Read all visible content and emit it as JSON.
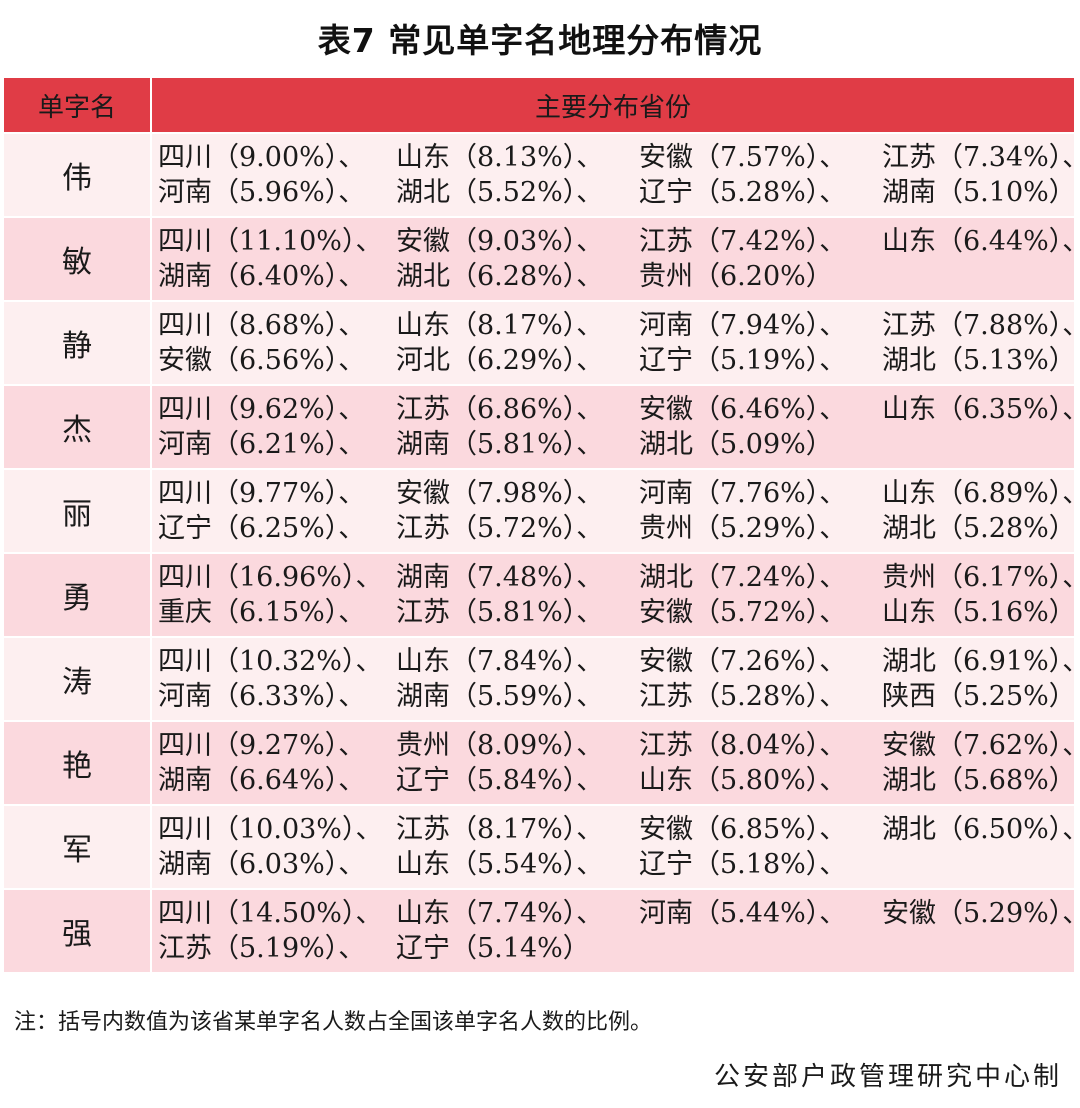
{
  "title": "表7  常见单字名地理分布情况",
  "table": {
    "headers": {
      "name": "单字名",
      "distribution": "主要分布省份"
    },
    "rows": [
      {
        "name": "伟",
        "lines": [
          [
            "四川（9.00%）、",
            "山东（8.13%）、",
            "安徽（7.57%）、",
            "江苏（7.34%）、"
          ],
          [
            "河南（5.96%）、",
            "湖北（5.52%）、",
            "辽宁（5.28%）、",
            "湖南（5.10%）"
          ]
        ]
      },
      {
        "name": "敏",
        "lines": [
          [
            "四川（11.10%）、",
            "安徽（9.03%）、",
            "江苏（7.42%）、",
            "山东（6.44%）、"
          ],
          [
            "湖南（6.40%）、",
            "湖北（6.28%）、",
            "贵州（6.20%）",
            ""
          ]
        ]
      },
      {
        "name": "静",
        "lines": [
          [
            "四川（8.68%）、",
            "山东（8.17%）、",
            "河南（7.94%）、",
            "江苏（7.88%）、"
          ],
          [
            "安徽（6.56%）、",
            "河北（6.29%）、",
            "辽宁（5.19%）、",
            "湖北（5.13%）"
          ]
        ]
      },
      {
        "name": "杰",
        "lines": [
          [
            "四川（9.62%）、",
            "江苏（6.86%）、",
            "安徽（6.46%）、",
            "山东（6.35%）、"
          ],
          [
            "河南（6.21%）、",
            "湖南（5.81%）、",
            "湖北（5.09%）",
            ""
          ]
        ]
      },
      {
        "name": "丽",
        "lines": [
          [
            "四川（9.77%）、",
            "安徽（7.98%）、",
            "河南（7.76%）、",
            "山东（6.89%）、"
          ],
          [
            "辽宁（6.25%）、",
            "江苏（5.72%）、",
            "贵州（5.29%）、",
            "湖北（5.28%）"
          ]
        ]
      },
      {
        "name": "勇",
        "lines": [
          [
            "四川（16.96%）、",
            "湖南（7.48%）、",
            "湖北（7.24%）、",
            "贵州（6.17%）、"
          ],
          [
            "重庆（6.15%）、",
            "江苏（5.81%）、",
            "安徽（5.72%）、",
            "山东（5.16%）"
          ]
        ]
      },
      {
        "name": "涛",
        "lines": [
          [
            "四川（10.32%）、",
            "山东（7.84%）、",
            "安徽（7.26%）、",
            "湖北（6.91%）、"
          ],
          [
            "河南（6.33%）、",
            "湖南（5.59%）、",
            "江苏（5.28%）、",
            "陕西（5.25%）"
          ]
        ]
      },
      {
        "name": "艳",
        "lines": [
          [
            "四川（9.27%）、",
            "贵州（8.09%）、",
            "江苏（8.04%）、",
            "安徽（7.62%）、"
          ],
          [
            "湖南（6.64%）、",
            "辽宁（5.84%）、",
            "山东（5.80%）、",
            "湖北（5.68%）"
          ]
        ]
      },
      {
        "name": "军",
        "lines": [
          [
            "四川（10.03%）、",
            "江苏（8.17%）、",
            "安徽（6.85%）、",
            "湖北（6.50%）、"
          ],
          [
            "湖南（6.03%）、",
            "山东（5.54%）、",
            "辽宁（5.18%）、",
            ""
          ]
        ]
      },
      {
        "name": "强",
        "lines": [
          [
            "四川（14.50%）、",
            "山东（7.74%）、",
            "河南（5.44%）、",
            "安徽（5.29%）、"
          ],
          [
            "江苏（5.19%）、",
            "辽宁（5.14%）",
            "",
            ""
          ]
        ]
      }
    ]
  },
  "note": "注：括号内数值为该省某单字名人数占全国该单字名人数的比例。",
  "credit": "公安部户政管理研究中心制",
  "colors": {
    "header_bg": "#e03c46",
    "row_odd_bg": "#fdeff0",
    "row_even_bg": "#fbd9de",
    "border": "#ffffff"
  }
}
